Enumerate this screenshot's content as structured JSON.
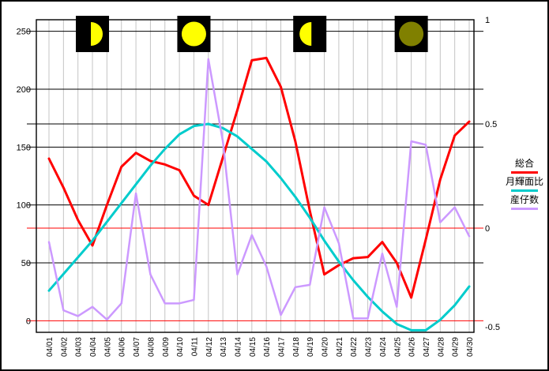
{
  "chart_data": {
    "type": "line",
    "title": "",
    "x_categories": [
      "04/01",
      "04/02",
      "04/03",
      "04/04",
      "04/05",
      "04/06",
      "04/07",
      "04/08",
      "04/09",
      "04/10",
      "04/11",
      "04/12",
      "04/13",
      "04/14",
      "04/15",
      "04/16",
      "04/17",
      "04/18",
      "04/19",
      "04/20",
      "04/21",
      "04/22",
      "04/23",
      "04/24",
      "04/25",
      "04/26",
      "04/27",
      "04/28",
      "04/29",
      "04/30"
    ],
    "series": [
      {
        "name": "総合",
        "axis": "left",
        "color": "#FF0000",
        "width": 3,
        "values": [
          140,
          115,
          87,
          65,
          100,
          133,
          145,
          138,
          135,
          130,
          108,
          100,
          141,
          182,
          225,
          227,
          202,
          155,
          95,
          40,
          48,
          54,
          55,
          68,
          50,
          20,
          70,
          122,
          160,
          172
        ]
      },
      {
        "name": "月輝面比",
        "axis": "right",
        "color": "#00CCCC",
        "width": 3,
        "values": [
          -0.3,
          -0.22,
          -0.14,
          -0.06,
          0.03,
          0.12,
          0.21,
          0.3,
          0.38,
          0.45,
          0.49,
          0.5,
          0.48,
          0.44,
          0.38,
          0.32,
          0.24,
          0.15,
          0.05,
          -0.06,
          -0.16,
          -0.25,
          -0.33,
          -0.4,
          -0.46,
          -0.49,
          -0.49,
          -0.44,
          -0.37,
          -0.28
        ]
      },
      {
        "name": "産仔数",
        "axis": "left",
        "color": "#CC99FF",
        "width": 2.5,
        "values": [
          68,
          9,
          4,
          12,
          1,
          15,
          110,
          40,
          15,
          15,
          18,
          226,
          155,
          40,
          74,
          47,
          5,
          29,
          31,
          98,
          67,
          2,
          2,
          58,
          12,
          155,
          152,
          85,
          98,
          73
        ]
      }
    ],
    "left_axis": {
      "tick_labels": [
        0,
        50,
        100,
        150,
        200,
        250
      ],
      "range": [
        -10,
        260
      ]
    },
    "right_axis": {
      "tick_labels": [
        "1",
        "0.5",
        "0",
        "-0.5"
      ],
      "tick_values": [
        1,
        0.5,
        0,
        -0.5
      ],
      "range": [
        -0.5,
        1
      ]
    },
    "grid": {
      "vertical_color": "#C4C4C4",
      "black_horizontal_left_values": [
        50,
        100,
        150,
        170,
        200,
        250
      ],
      "red_horizontal_left_values": [
        0,
        80
      ],
      "red_line_color": "#FF0000"
    },
    "moon_phases": [
      {
        "date": "04/04",
        "phase": "first-quarter",
        "lit_color": "#FFFF00",
        "bg": "#000000"
      },
      {
        "date": "04/11",
        "phase": "full",
        "lit_color": "#FFFF00",
        "bg": "#000000"
      },
      {
        "date": "04/19",
        "phase": "last-quarter",
        "lit_color": "#FFFF00",
        "bg": "#000000"
      },
      {
        "date": "04/26",
        "phase": "new",
        "lit_color": "#808000",
        "bg": "#000000"
      }
    ],
    "legend": {
      "position": "right",
      "entries": [
        "総合",
        "月輝面比",
        "産仔数"
      ]
    }
  }
}
